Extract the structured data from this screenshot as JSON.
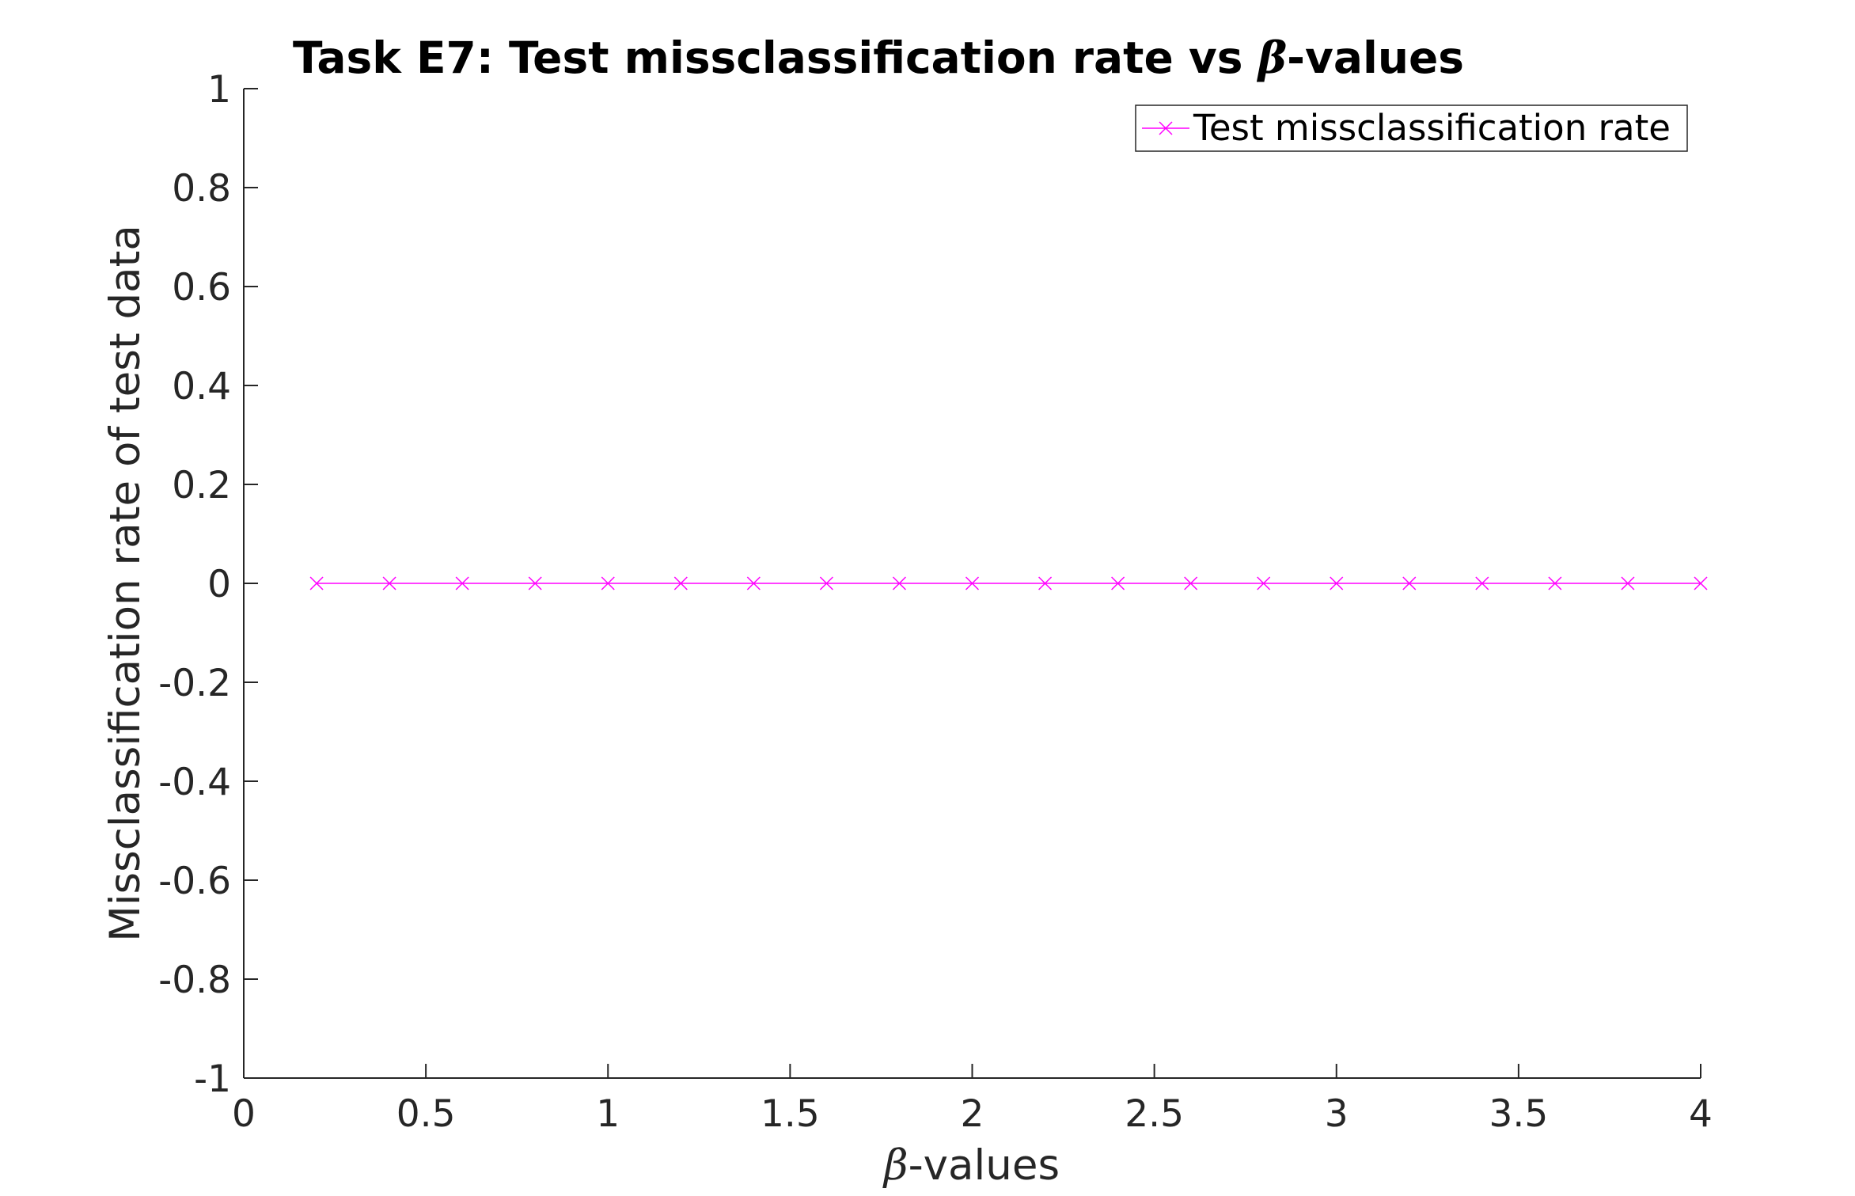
{
  "chart_data": {
    "type": "line",
    "title": "Task E7: Test missclassification rate vs β-values",
    "title_parts": {
      "prefix": "Task E7: Test missclassification rate vs ",
      "symbol": "β",
      "suffix": "-values"
    },
    "xlabel": "β-values",
    "xlabel_parts": {
      "symbol": "β",
      "suffix": "-values"
    },
    "ylabel": "Missclassification rate of test data",
    "xlim": [
      0,
      4
    ],
    "ylim": [
      -1,
      1
    ],
    "xticks": [
      0,
      0.5,
      1,
      1.5,
      2,
      2.5,
      3,
      3.5,
      4
    ],
    "xtick_labels": [
      "0",
      "0.5",
      "1",
      "1.5",
      "2",
      "2.5",
      "3",
      "3.5",
      "4"
    ],
    "yticks": [
      -1,
      -0.8,
      -0.6,
      -0.4,
      -0.2,
      0,
      0.2,
      0.4,
      0.6,
      0.8,
      1
    ],
    "ytick_labels": [
      "-1",
      "-0.8",
      "-0.6",
      "-0.4",
      "-0.2",
      "0",
      "0.2",
      "0.4",
      "0.6",
      "0.8",
      "1"
    ],
    "grid": false,
    "legend_position": "top-right",
    "series": [
      {
        "name": "Test missclassification rate",
        "color": "#ff00ff",
        "marker": "x",
        "x": [
          0.2,
          0.4,
          0.6,
          0.8,
          1.0,
          1.2,
          1.4,
          1.6,
          1.8,
          2.0,
          2.2,
          2.4,
          2.6,
          2.8,
          3.0,
          3.2,
          3.4,
          3.6,
          3.8,
          4.0
        ],
        "y": [
          0,
          0,
          0,
          0,
          0,
          0,
          0,
          0,
          0,
          0,
          0,
          0,
          0,
          0,
          0,
          0,
          0,
          0,
          0,
          0
        ]
      }
    ]
  }
}
